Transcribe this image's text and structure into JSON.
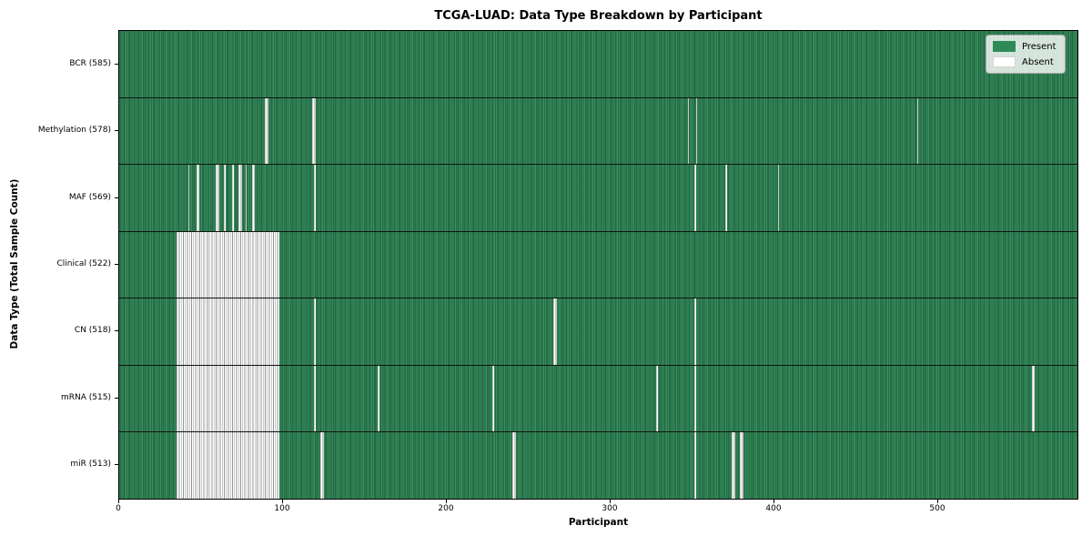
{
  "chart_data": {
    "type": "heatmap",
    "title": "TCGA-LUAD: Data Type Breakdown by Participant",
    "xlabel": "Participant",
    "ylabel": "Data Type (Total Sample Count)",
    "x_ticks": [
      0,
      100,
      200,
      300,
      400,
      500
    ],
    "x_max": 585,
    "grid": false,
    "legend_position": "upper right",
    "colors": {
      "present": "#2E8B57",
      "present_stripe_dark": "#266B46",
      "absent": "#FFFFFF",
      "absent_stripe": "#969696",
      "row_divider": "#101510"
    },
    "legend": [
      {
        "label": "Present",
        "color": "#2E8B57"
      },
      {
        "label": "Absent",
        "color": "#FFFFFF"
      }
    ],
    "rows": [
      {
        "label": "BCR (585)",
        "data_type": "BCR",
        "present_count": 585,
        "absent_count": 0,
        "absent_segments": []
      },
      {
        "label": "Methylation (578)",
        "data_type": "Methylation",
        "present_count": 578,
        "absent_count": 7,
        "absent_segments": [
          [
            89,
            2
          ],
          [
            118,
            2
          ],
          [
            347,
            1
          ],
          [
            352,
            1
          ],
          [
            487,
            1
          ]
        ]
      },
      {
        "label": "MAF (569)",
        "data_type": "MAF",
        "present_count": 569,
        "absent_count": 16,
        "absent_segments": [
          [
            42,
            1
          ],
          [
            47,
            2
          ],
          [
            59,
            2
          ],
          [
            64,
            1
          ],
          [
            69,
            1
          ],
          [
            73,
            2
          ],
          [
            77,
            1
          ],
          [
            81,
            2
          ],
          [
            119,
            1
          ],
          [
            351,
            1
          ],
          [
            370,
            1
          ],
          [
            402,
            1
          ]
        ]
      },
      {
        "label": "Clinical (522)",
        "data_type": "Clinical",
        "present_count": 522,
        "absent_count": 63,
        "absent_segments": [
          [
            35,
            63
          ]
        ]
      },
      {
        "label": "CN (518)",
        "data_type": "CN",
        "present_count": 518,
        "absent_count": 67,
        "absent_segments": [
          [
            35,
            63
          ],
          [
            119,
            1
          ],
          [
            265,
            2
          ],
          [
            351,
            1
          ]
        ]
      },
      {
        "label": "mRNA (515)",
        "data_type": "mRNA",
        "present_count": 515,
        "absent_count": 70,
        "absent_segments": [
          [
            35,
            63
          ],
          [
            119,
            1
          ],
          [
            158,
            1
          ],
          [
            228,
            1
          ],
          [
            328,
            1
          ],
          [
            351,
            1
          ],
          [
            557,
            2
          ]
        ]
      },
      {
        "label": "miR (513)",
        "data_type": "miR",
        "present_count": 513,
        "absent_count": 72,
        "absent_segments": [
          [
            35,
            63
          ],
          [
            123,
            2
          ],
          [
            240,
            2
          ],
          [
            351,
            1
          ],
          [
            374,
            2
          ],
          [
            379,
            2
          ]
        ]
      }
    ]
  }
}
